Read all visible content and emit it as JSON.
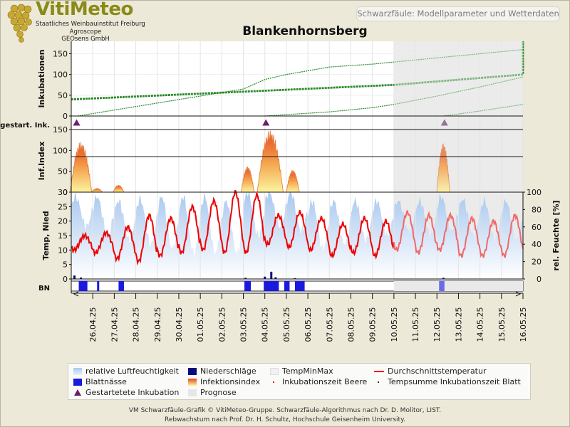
{
  "header": {
    "brand": "VitiMeteo",
    "brand_lines": [
      "Staatliches Weinbauinstitut Freiburg",
      "Agroscope",
      "GEOsens GmbH"
    ],
    "subtitle": "Schwarzfäule: Modellparameter und Wetterdaten",
    "title": "Blankenhornsberg"
  },
  "colors": {
    "humidity": "#a9c8ef",
    "leaf_wetness": "#1a1adf",
    "precip": "#0a0a7a",
    "temp": "#ee0000",
    "incubation": "#2a8a2a",
    "forecast_bg": "#ebebeb"
  },
  "footer": {
    "line1": "VM Schwarzfäule-Grafik © VitiMeteo-Gruppe. Schwarzfäule-Algorithmus nach Dr. D. Molitor, LIST.",
    "line2": "Rebwachstum nach Prof. Dr. H. Schultz, Hochschule Geisenheim University."
  },
  "legend": [
    {
      "label": "relative Luftfeuchtigkeit",
      "symbol": "humidity-gradient"
    },
    {
      "label": "Niederschläge",
      "symbol": "precip-square"
    },
    {
      "label": "TempMinMax",
      "symbol": "tempminmax-square"
    },
    {
      "label": "Durchschnittstemperatur",
      "symbol": "red-line"
    },
    {
      "label": "Blattnässe",
      "symbol": "blue-square"
    },
    {
      "label": "Infektionsindex",
      "symbol": "infection-gradient"
    },
    {
      "label": "Inkubationszeit Beere",
      "symbol": "red-dot"
    },
    {
      "label": "Tempsumme Inkubationszeit Blatt",
      "symbol": "dark-dot"
    },
    {
      "label": "Gestartetete Inkubation",
      "symbol": "triangle"
    },
    {
      "label": "Prognose",
      "symbol": "grey-square"
    }
  ],
  "chart_data": {
    "type": "multi-panel time series",
    "x_dates": [
      "26.04.25",
      "27.04.25",
      "28.04.25",
      "29.04.25",
      "30.04.25",
      "01.05.25",
      "02.05.25",
      "03.05.25",
      "04.05.25",
      "05.05.25",
      "06.05.25",
      "07.05.25",
      "08.05.25",
      "09.05.25",
      "10.05.25",
      "11.05.25",
      "12.05.25",
      "13.05.25",
      "14.05.25",
      "15.05.25",
      "16.05.25"
    ],
    "x_start": "25.04.25",
    "forecast_start": "10.05.25",
    "panels": {
      "incubation": {
        "ylabel": "Inkubationen",
        "yticks": [
          0,
          50,
          100,
          150
        ],
        "ylim": [
          0,
          180
        ],
        "series": [
          {
            "style": "thick",
            "x": [
              0,
              15,
              25,
              35,
              45,
              55,
              65,
              72,
              80,
              100
            ],
            "y": [
              40,
              75,
              100,
              130,
              150,
              168,
              180,
              190,
              200,
              220
            ]
          },
          {
            "style": "thin",
            "x": [
              0.3,
              8,
              9,
              10,
              12,
              14,
              15,
              17,
              19,
              21
            ],
            "y": [
              0,
              65,
              88,
              100,
              118,
              125,
              130,
              140,
              150,
              160
            ]
          },
          {
            "style": "thin",
            "x": [
              9,
              12,
              14,
              15,
              17,
              19,
              21
            ],
            "y": [
              0,
              10,
              20,
              28,
              48,
              70,
              94
            ]
          },
          {
            "style": "thin",
            "x": [
              17.3,
              19,
              21
            ],
            "y": [
              0,
              12,
              28
            ]
          }
        ],
        "started_label": "gestart. Ink.",
        "started_marks": [
          0.25,
          9.05,
          17.35
        ]
      },
      "infection_index": {
        "ylabel": "Inf.Index",
        "yticks": [
          0,
          50,
          100,
          150
        ],
        "ylim": [
          0,
          150
        ],
        "threshold": 85,
        "peaks": [
          [
            0.45,
            108,
            0.5
          ],
          [
            1.2,
            8,
            0.25
          ],
          [
            2.2,
            15,
            0.25
          ],
          [
            8.2,
            55,
            0.3
          ],
          [
            9.25,
            133,
            0.6
          ],
          [
            10.3,
            48,
            0.3
          ],
          [
            17.3,
            105,
            0.3
          ]
        ]
      },
      "weather": {
        "ylabel_left": "Temp, Nied",
        "ylabel_right": "rel. Feuchte [%]",
        "yticks_left": [
          0,
          5,
          10,
          15,
          20,
          25,
          30
        ],
        "yticks_right": [
          0,
          20,
          40,
          60,
          80,
          100
        ],
        "temp_daily": [
          [
            10,
            15
          ],
          [
            9,
            16
          ],
          [
            7,
            18
          ],
          [
            6,
            22
          ],
          [
            8,
            21
          ],
          [
            9,
            25
          ],
          [
            10,
            27
          ],
          [
            9,
            30
          ],
          [
            9,
            29
          ],
          [
            12,
            22
          ],
          [
            11,
            23
          ],
          [
            10,
            21
          ],
          [
            8,
            19
          ],
          [
            9,
            21
          ],
          [
            8,
            20
          ],
          [
            10,
            23
          ],
          [
            9,
            22
          ],
          [
            10,
            22
          ],
          [
            8,
            21
          ],
          [
            8,
            20
          ],
          [
            8,
            22
          ]
        ],
        "humidity_daily": [
          [
            60,
            95
          ],
          [
            50,
            95
          ],
          [
            45,
            90
          ],
          [
            40,
            92
          ],
          [
            35,
            95
          ],
          [
            30,
            95
          ],
          [
            30,
            95
          ],
          [
            30,
            90
          ],
          [
            50,
            100
          ],
          [
            60,
            100
          ],
          [
            55,
            100
          ],
          [
            35,
            90
          ],
          [
            40,
            90
          ],
          [
            45,
            90
          ],
          [
            50,
            90
          ],
          [
            55,
            90
          ],
          [
            50,
            90
          ],
          [
            55,
            95
          ],
          [
            50,
            92
          ],
          [
            45,
            90
          ],
          [
            45,
            90
          ]
        ],
        "precip": [
          [
            0.15,
            1.2
          ],
          [
            0.45,
            0.5
          ],
          [
            8.1,
            0.4
          ],
          [
            9.0,
            0.8
          ],
          [
            9.3,
            2.5
          ],
          [
            9.5,
            0.6
          ],
          [
            10.4,
            0.3
          ],
          [
            17.3,
            0.4
          ]
        ]
      },
      "leaf_wetness": {
        "label": "BN",
        "intervals": [
          [
            0.35,
            0.75
          ],
          [
            1.2,
            1.3
          ],
          [
            2.2,
            2.45
          ],
          [
            8.05,
            8.35
          ],
          [
            8.95,
            9.65
          ],
          [
            9.9,
            10.15
          ],
          [
            10.4,
            10.85
          ],
          [
            17.1,
            17.35
          ]
        ]
      }
    }
  }
}
